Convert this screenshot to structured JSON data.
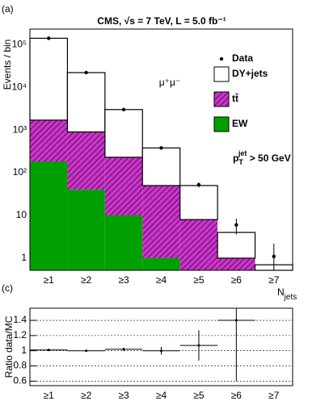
{
  "chart_data": [
    {
      "type": "bar",
      "stacked": true,
      "log_y": true,
      "panel_label": "(a)",
      "title": "CMS, √s = 7 TeV, L = 5.0 fb⁻¹",
      "ylabel": "Events / bin",
      "xlabel": [
        "N",
        "jets"
      ],
      "annotation": "μ⁺μ⁻",
      "cut_label": [
        "p",
        "T",
        "jet",
        " > 50 GeV"
      ],
      "categories": [
        "≥1",
        "≥2",
        "≥3",
        "≥4",
        "≥5",
        "≥6",
        "≥7"
      ],
      "series": [
        {
          "name": "EW",
          "color": "#00a000",
          "values": [
            180,
            40,
            10,
            1,
            null,
            null,
            null
          ]
        },
        {
          "name": "tt̄",
          "color": "#cc33cc",
          "hatch": true,
          "values": [
            1520,
            860,
            220,
            49,
            8,
            1,
            null
          ]
        },
        {
          "name": "DY+jets",
          "color": "#ffffff",
          "values": [
            138300,
            21100,
            2770,
            330,
            42,
            3,
            0.7
          ]
        }
      ],
      "data": {
        "name": "Data",
        "values": [
          140000,
          22000,
          3000,
          380,
          52,
          6,
          1.1
        ],
        "errors": [
          380,
          150,
          55,
          20,
          7,
          2.4,
          1.1
        ]
      },
      "ylim": [
        0.52,
        230000
      ],
      "yticks": [
        1,
        10,
        {
          "value": 100,
          "label": "10²"
        },
        {
          "value": 1000,
          "label": "10³"
        },
        {
          "value": 10000,
          "label": "10⁴"
        },
        {
          "value": 100000,
          "label": "10⁵"
        }
      ]
    },
    {
      "type": "errorbar",
      "panel_label": "(c)",
      "ylabel": "Ratio data/MC",
      "categories": [
        "≥1",
        "≥2",
        "≥3",
        "≥4",
        "≥5",
        "≥6",
        "≥7"
      ],
      "values": [
        1.01,
        1.0,
        1.02,
        1.0,
        1.07,
        1.4,
        null
      ],
      "errors": [
        0.005,
        0.01,
        0.02,
        0.05,
        0.2,
        0.8,
        null
      ],
      "ylim": [
        0.54,
        1.56
      ],
      "yticks": [
        0.6,
        0.8,
        1,
        1.2,
        1.4
      ],
      "grid": true,
      "grid_style": "dashed"
    }
  ]
}
